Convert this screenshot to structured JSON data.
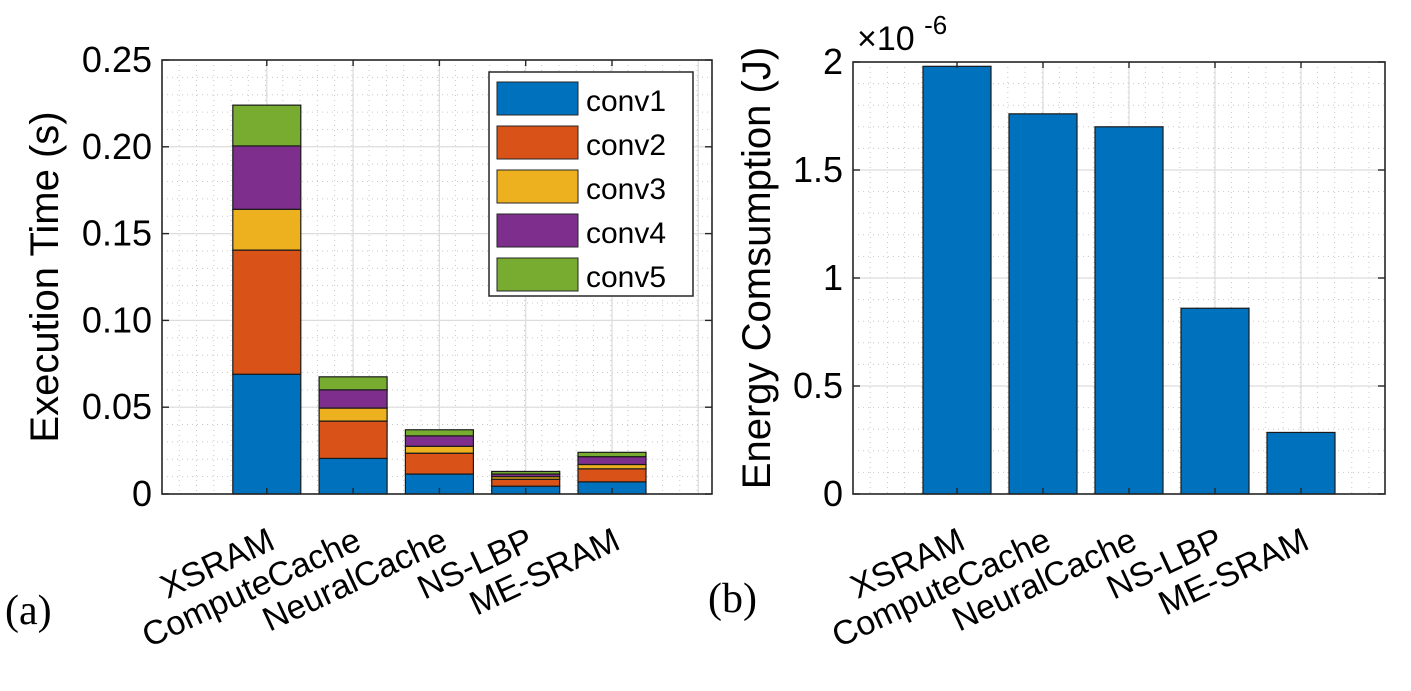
{
  "chart_data": [
    {
      "id": "a",
      "panel_label": "(a)",
      "type": "bar",
      "stacked": true,
      "categories": [
        "XSRAM",
        "ComputeCache",
        "NeuralCache",
        "NS-LBP",
        "ME-SRAM"
      ],
      "series": [
        {
          "name": "conv1",
          "color": "#0072BD",
          "values": [
            0.069,
            0.0205,
            0.0115,
            0.0045,
            0.007
          ]
        },
        {
          "name": "conv2",
          "color": "#D95319",
          "values": [
            0.0715,
            0.0215,
            0.012,
            0.004,
            0.0075
          ]
        },
        {
          "name": "conv3",
          "color": "#EDB120",
          "values": [
            0.0235,
            0.0075,
            0.004,
            0.0015,
            0.0025
          ]
        },
        {
          "name": "conv4",
          "color": "#7E2F8E",
          "values": [
            0.0365,
            0.0105,
            0.006,
            0.0015,
            0.0045
          ]
        },
        {
          "name": "conv5",
          "color": "#77AC30",
          "values": [
            0.0235,
            0.0075,
            0.0035,
            0.0015,
            0.0025
          ]
        }
      ],
      "title": "",
      "xlabel": "",
      "ylabel": "Execution Time (s)",
      "ylim": [
        0,
        0.25
      ],
      "yticks": [
        0,
        0.05,
        0.1,
        0.15,
        0.2,
        0.25
      ],
      "ytick_labels": [
        "0",
        "0.05",
        "0.10",
        "0.15",
        "0.20",
        "0.25"
      ],
      "grid": true,
      "minor_grid": true,
      "legend_position": "top-right"
    },
    {
      "id": "b",
      "panel_label": "(b)",
      "type": "bar",
      "categories": [
        "XSRAM",
        "ComputeCache",
        "NeuralCache",
        "NS-LBP",
        "ME-SRAM"
      ],
      "values": [
        1.98e-06,
        1.76e-06,
        1.7e-06,
        8.6e-07,
        2.85e-07
      ],
      "color": "#0072BD",
      "title": "",
      "xlabel": "",
      "ylabel": "Energy Comsumption (J)",
      "ylim": [
        0,
        2e-06
      ],
      "yticks": [
        0,
        5e-07,
        1e-06,
        1.5e-06,
        2e-06
      ],
      "ytick_labels": [
        "0",
        "0.5",
        "1",
        "1.5",
        "2"
      ],
      "exponent_label": "×10",
      "exponent_power": "-6",
      "grid": true,
      "minor_grid": true
    }
  ]
}
